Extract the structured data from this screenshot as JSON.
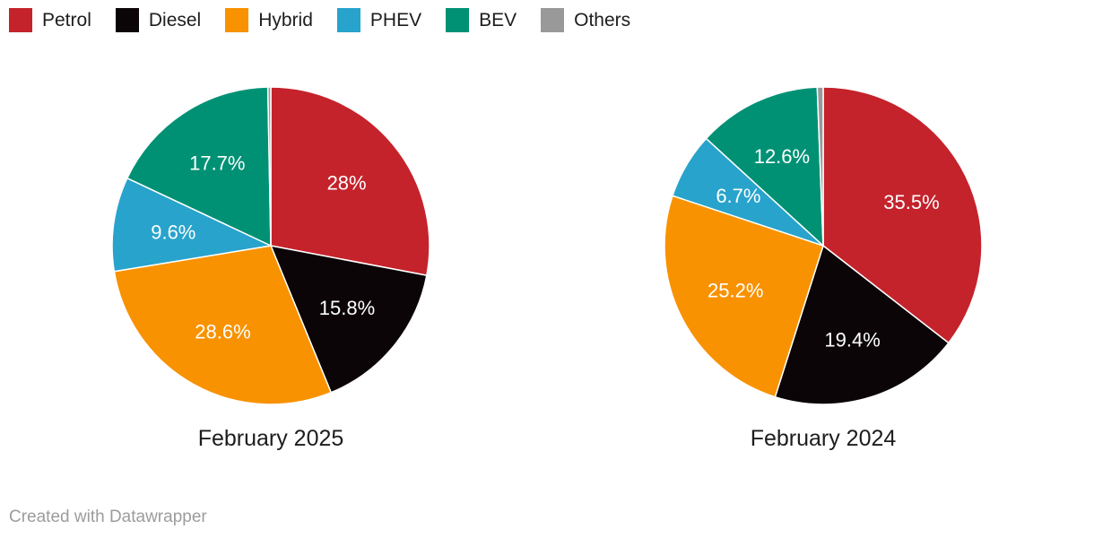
{
  "legend": {
    "position": "top",
    "items": [
      {
        "label": "Petrol",
        "color": "#c4232c"
      },
      {
        "label": "Diesel",
        "color": "#0c0508"
      },
      {
        "label": "Hybrid",
        "color": "#f89200"
      },
      {
        "label": "PHEV",
        "color": "#28a3cc"
      },
      {
        "label": "BEV",
        "color": "#009175"
      },
      {
        "label": "Others",
        "color": "#999999"
      }
    ]
  },
  "chart_data": [
    {
      "type": "pie",
      "title": "February 2025",
      "categories": [
        "Petrol",
        "Diesel",
        "Hybrid",
        "PHEV",
        "BEV",
        "Others"
      ],
      "values": [
        28,
        15.8,
        28.6,
        9.6,
        17.7,
        0.3
      ],
      "slice_labels": [
        "28%",
        "15.8%",
        "28.6%",
        "9.6%",
        "17.7%",
        ""
      ],
      "start_angle_deg": 0,
      "direction": "clockwise",
      "separator_color": "#ffffff"
    },
    {
      "type": "pie",
      "title": "February 2024",
      "categories": [
        "Petrol",
        "Diesel",
        "Hybrid",
        "PHEV",
        "BEV",
        "Others"
      ],
      "values": [
        35.5,
        19.4,
        25.2,
        6.7,
        12.6,
        0.6
      ],
      "slice_labels": [
        "35.5%",
        "19.4%",
        "25.2%",
        "6.7%",
        "12.6%",
        ""
      ],
      "start_angle_deg": 0,
      "direction": "clockwise",
      "separator_color": "#ffffff"
    }
  ],
  "footer": {
    "credit": "Created with Datawrapper"
  }
}
